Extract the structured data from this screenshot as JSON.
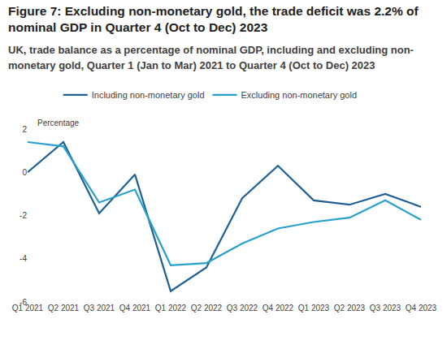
{
  "chart_data": {
    "type": "line",
    "title": "Figure 7: Excluding non-monetary gold, the trade deficit was 2.2% of nominal GDP in Quarter 4 (Oct to Dec) 2023",
    "subtitle": "UK, trade balance as a percentage of nominal GDP, including and excluding non-monetary gold, Quarter 1 (Jan to Mar) 2021 to Quarter 4 (Oct to Dec) 2023",
    "y_label": "Percentage",
    "categories": [
      "Q1 2021",
      "Q2 2021",
      "Q3 2021",
      "Q4 2021",
      "Q1 2022",
      "Q2 2022",
      "Q3 2022",
      "Q4 2022",
      "Q1 2023",
      "Q2 2023",
      "Q3 2023",
      "Q4 2023"
    ],
    "series": [
      {
        "name": "Including non-monetary gold",
        "color": "#206095",
        "values": [
          0,
          1.4,
          -1.9,
          -0.1,
          -5.5,
          -4.4,
          -1.2,
          0.3,
          -1.3,
          -1.5,
          -1.0,
          -1.6
        ]
      },
      {
        "name": "Excluding non-monetary gold",
        "color": "#27a0cc",
        "values": [
          1.4,
          1.2,
          -1.4,
          -0.8,
          -4.3,
          -4.2,
          -3.3,
          -2.6,
          -2.3,
          -2.1,
          -1.3,
          -2.2
        ]
      }
    ],
    "ylim": [
      -6,
      2
    ],
    "yticks": [
      -6,
      -4,
      -2,
      0,
      2
    ],
    "grid": false,
    "legend": "top"
  }
}
